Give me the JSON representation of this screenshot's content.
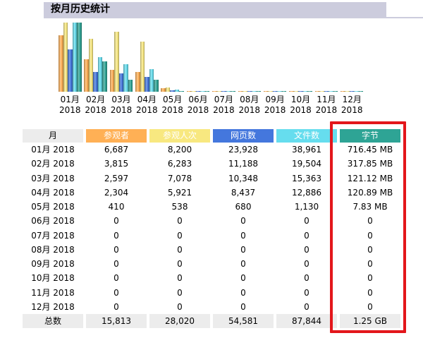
{
  "section": {
    "title": "按月历史统计"
  },
  "colors": {
    "title_bar": "#CCCCDD",
    "row_title": "#ECECEC",
    "visitors": "#FFB055",
    "visits": "#F8E880",
    "pages": "#4477DD",
    "hits": "#66DDEE",
    "bytes": "#2EA495",
    "highlight": "#E3161B"
  },
  "chart_data": {
    "type": "bar",
    "categories": [
      "01月 2018",
      "02月 2018",
      "03月 2018",
      "04月 2018",
      "05月 2018",
      "06月 2018",
      "07月 2018",
      "08月 2018",
      "09月 2018",
      "10月 2018",
      "11月 2018",
      "12月 2018"
    ],
    "series": [
      {
        "name": "参观者",
        "values": [
          6687,
          3815,
          2597,
          2304,
          410,
          0,
          0,
          0,
          0,
          0,
          0,
          0
        ]
      },
      {
        "name": "参观人次",
        "values": [
          8200,
          6283,
          7078,
          5921,
          538,
          0,
          0,
          0,
          0,
          0,
          0,
          0
        ]
      },
      {
        "name": "网页数",
        "values": [
          23928,
          11188,
          10348,
          8437,
          680,
          0,
          0,
          0,
          0,
          0,
          0,
          0
        ]
      },
      {
        "name": "文件数",
        "values": [
          38961,
          19504,
          15363,
          12886,
          1130,
          0,
          0,
          0,
          0,
          0,
          0,
          0
        ]
      },
      {
        "name": "字节",
        "values": [
          716.45,
          317.85,
          121.12,
          120.89,
          7.83,
          0,
          0,
          0,
          0,
          0,
          0,
          0
        ]
      }
    ]
  },
  "table": {
    "month_header": "月",
    "rows": [
      [
        "6,687",
        "8,200",
        "23,928",
        "38,961",
        "716.45 MB"
      ],
      [
        "3,815",
        "6,283",
        "11,188",
        "19,504",
        "317.85 MB"
      ],
      [
        "2,597",
        "7,078",
        "10,348",
        "15,363",
        "121.12 MB"
      ],
      [
        "2,304",
        "5,921",
        "8,437",
        "12,886",
        "120.89 MB"
      ],
      [
        "410",
        "538",
        "680",
        "1,130",
        "7.83 MB"
      ],
      [
        "0",
        "0",
        "0",
        "0",
        "0"
      ],
      [
        "0",
        "0",
        "0",
        "0",
        "0"
      ],
      [
        "0",
        "0",
        "0",
        "0",
        "0"
      ],
      [
        "0",
        "0",
        "0",
        "0",
        "0"
      ],
      [
        "0",
        "0",
        "0",
        "0",
        "0"
      ],
      [
        "0",
        "0",
        "0",
        "0",
        "0"
      ],
      [
        "0",
        "0",
        "0",
        "0",
        "0"
      ]
    ],
    "total": {
      "label": "总数",
      "cells": [
        "15,813",
        "28,020",
        "54,581",
        "87,844",
        "1.25 GB"
      ]
    }
  }
}
